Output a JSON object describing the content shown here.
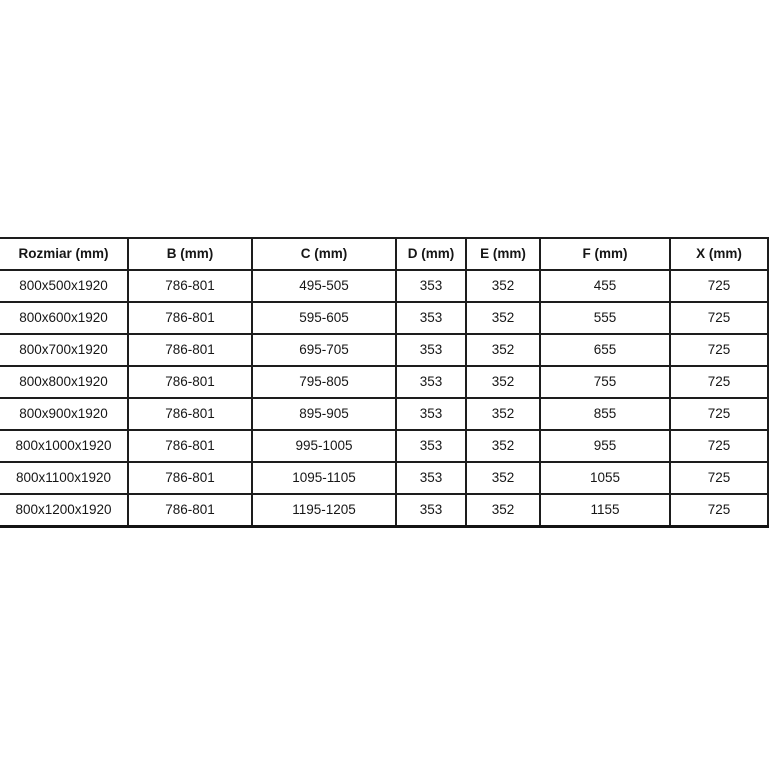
{
  "table": {
    "columns": [
      "Rozmiar (mm)",
      "B (mm)",
      "C (mm)",
      "D (mm)",
      "E (mm)",
      "F (mm)",
      "X (mm)"
    ],
    "rows": [
      [
        "800x500x1920",
        "786-801",
        "495-505",
        "353",
        "352",
        "455",
        "725"
      ],
      [
        "800x600x1920",
        "786-801",
        "595-605",
        "353",
        "352",
        "555",
        "725"
      ],
      [
        "800x700x1920",
        "786-801",
        "695-705",
        "353",
        "352",
        "655",
        "725"
      ],
      [
        "800x800x1920",
        "786-801",
        "795-805",
        "353",
        "352",
        "755",
        "725"
      ],
      [
        "800x900x1920",
        "786-801",
        "895-905",
        "353",
        "352",
        "855",
        "725"
      ],
      [
        "800x1000x1920",
        "786-801",
        "995-1005",
        "353",
        "352",
        "955",
        "725"
      ],
      [
        "800x1100x1920",
        "786-801",
        "1095-1105",
        "353",
        "352",
        "1055",
        "725"
      ],
      [
        "800x1200x1920",
        "786-801",
        "1195-1205",
        "353",
        "352",
        "1155",
        "725"
      ]
    ]
  },
  "colors": {
    "background": "#ffffff",
    "grid_line": "#1d1d1d",
    "text": "#161616"
  }
}
